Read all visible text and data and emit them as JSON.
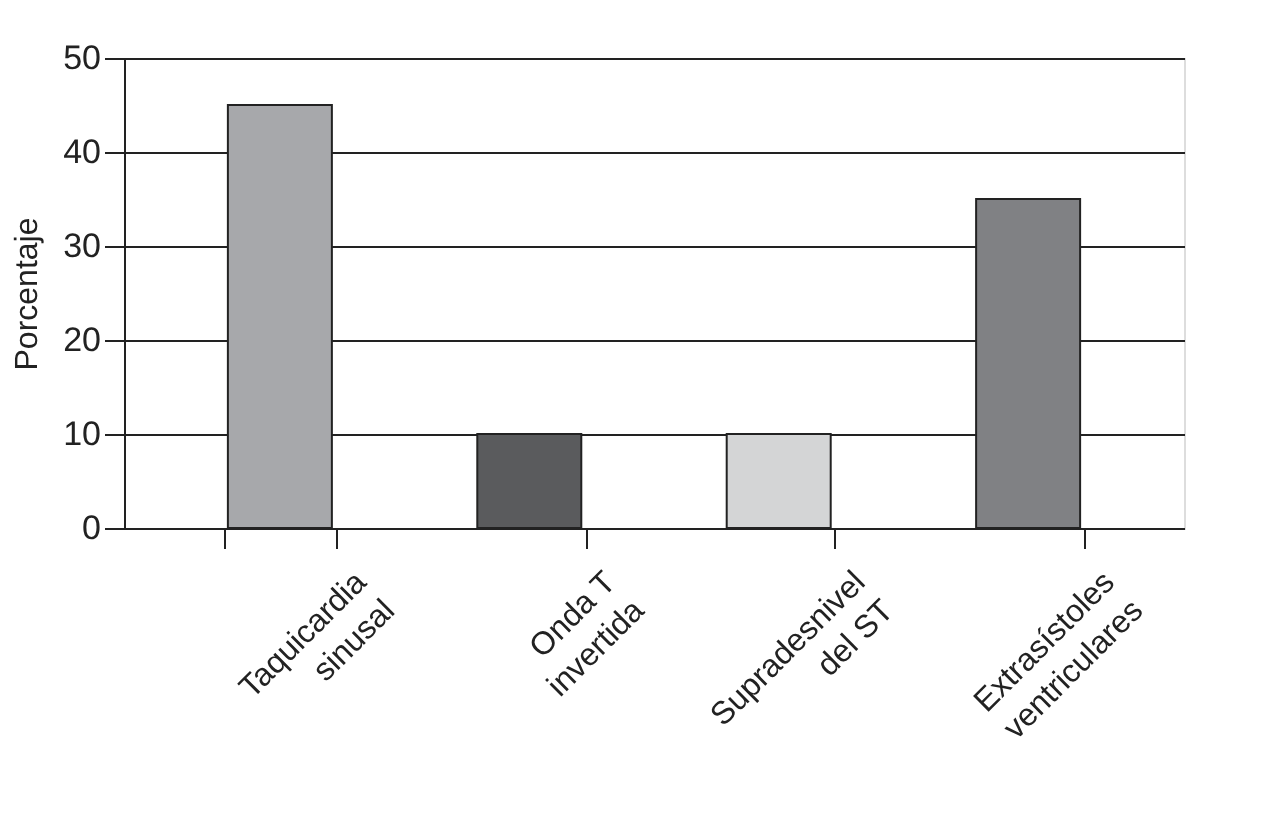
{
  "chart_data": {
    "type": "bar",
    "ylabel": "Porcentaje",
    "categories": [
      "Taquicardia\nsinusal",
      "Onda T\ninvertida",
      "Supradesnivel\ndel ST",
      "Extrasístoles\nventriculares"
    ],
    "values": [
      45,
      10,
      10,
      35
    ],
    "colors": [
      "#a7a8ab",
      "#5a5b5d",
      "#d4d5d6",
      "#808184"
    ],
    "ylim": [
      0,
      50
    ],
    "yticks": [
      0,
      10,
      20,
      30,
      40,
      50
    ],
    "grid": "y"
  }
}
